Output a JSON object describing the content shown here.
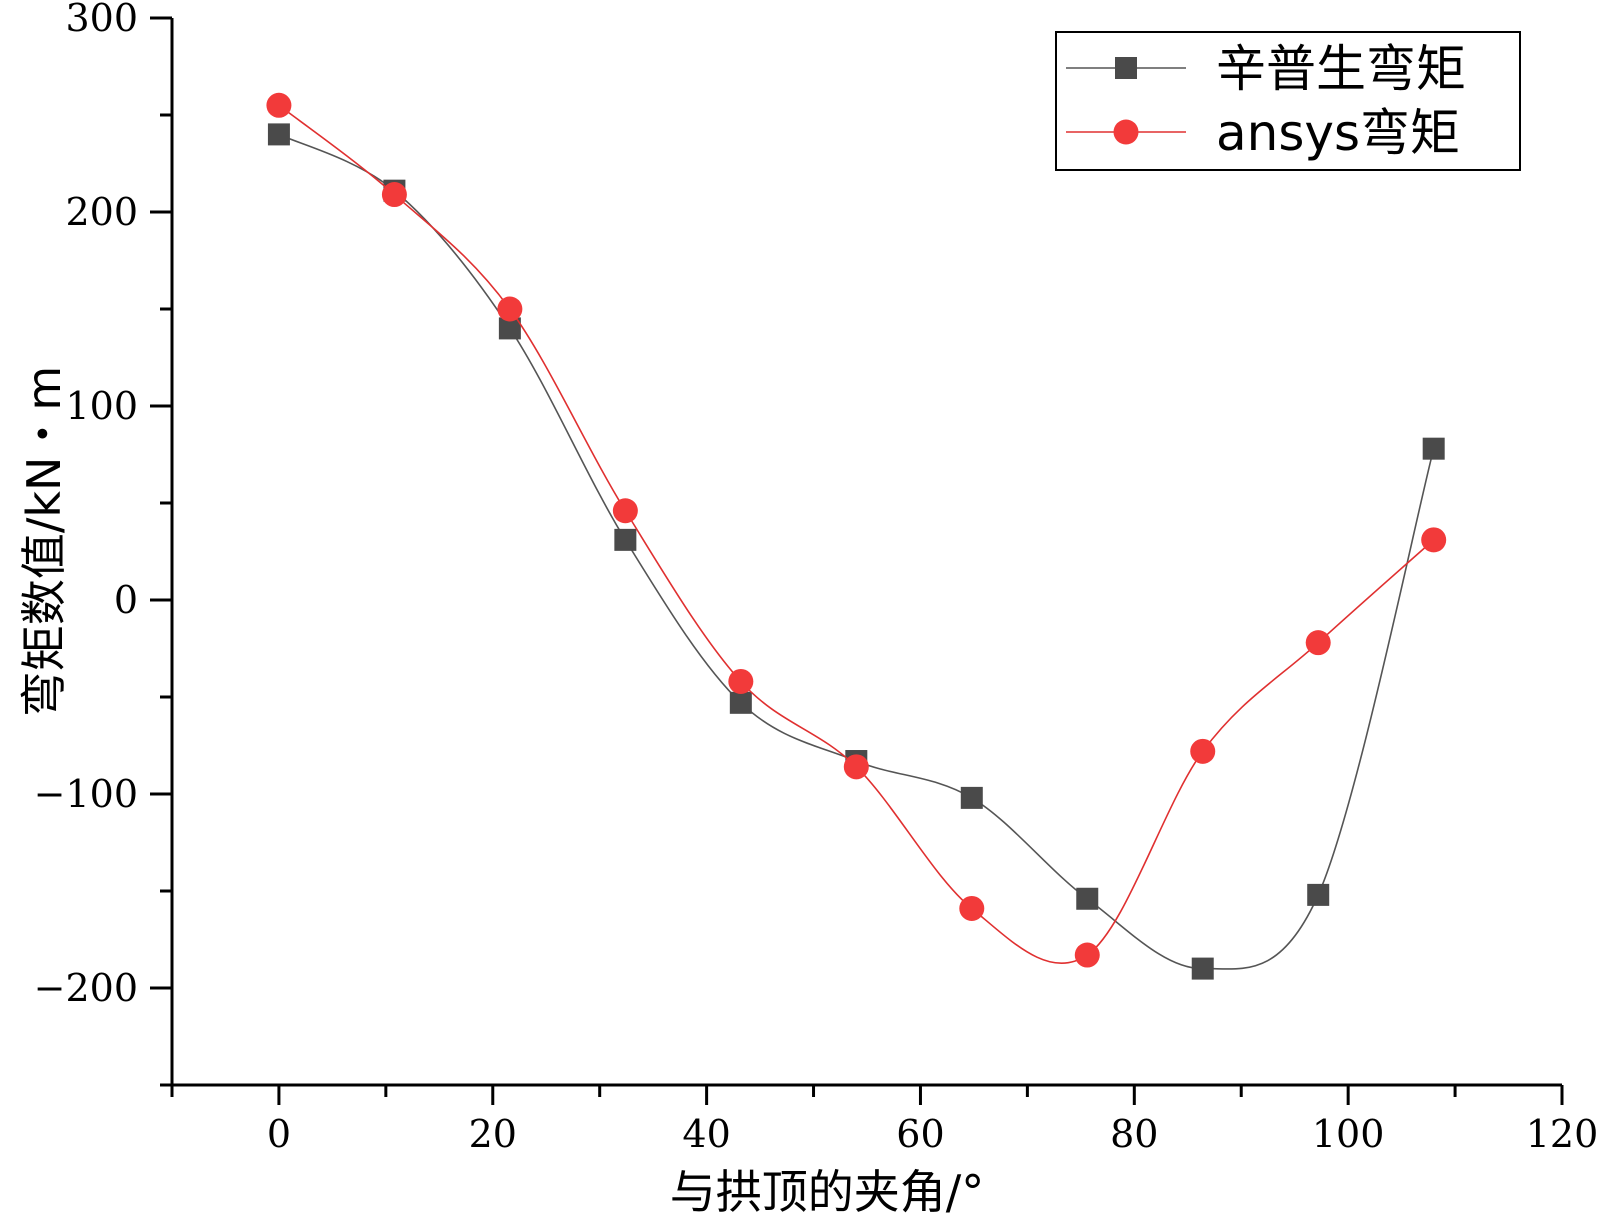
{
  "chart_data": {
    "type": "line",
    "xlabel": "与拱顶的夹角/°",
    "ylabel": "弯矩数值/kN・m",
    "xlim": [
      -10,
      120
    ],
    "ylim": [
      -250,
      300
    ],
    "xticks": [
      0,
      20,
      40,
      60,
      80,
      100,
      120
    ],
    "yticks": [
      300,
      200,
      100,
      0,
      -100,
      -200
    ],
    "ytick_labels": [
      "300",
      "200",
      "100",
      "0",
      "−100",
      "−200"
    ],
    "legend_position": "top-right",
    "series": [
      {
        "name": "辛普生弯矩",
        "marker": "square",
        "color": "#4a4a4a",
        "line_color": "#555555",
        "x": [
          0,
          10.8,
          21.6,
          32.4,
          43.2,
          54,
          64.8,
          75.6,
          86.4,
          97.2,
          108
        ],
        "y": [
          240,
          211,
          140,
          31,
          -53,
          -83,
          -102,
          -154,
          -190,
          -152,
          78
        ]
      },
      {
        "name": "ansys弯矩",
        "marker": "circle",
        "color": "#f23a3a",
        "line_color": "#e03030",
        "x": [
          0,
          10.8,
          21.6,
          32.4,
          43.2,
          54,
          64.8,
          75.6,
          86.4,
          97.2,
          108
        ],
        "y": [
          255,
          209,
          150,
          46,
          -42,
          -86,
          -159,
          -183,
          -78,
          -22,
          31
        ]
      }
    ]
  }
}
